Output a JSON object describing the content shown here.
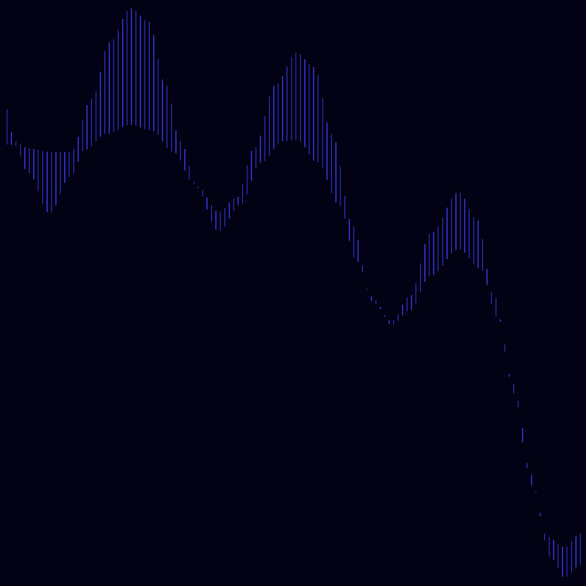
{
  "artwork": {
    "background_color": "#020214",
    "stroke_color": "#3a35e0",
    "bar_count": 130,
    "description_kind": "generative-line-art"
  }
}
